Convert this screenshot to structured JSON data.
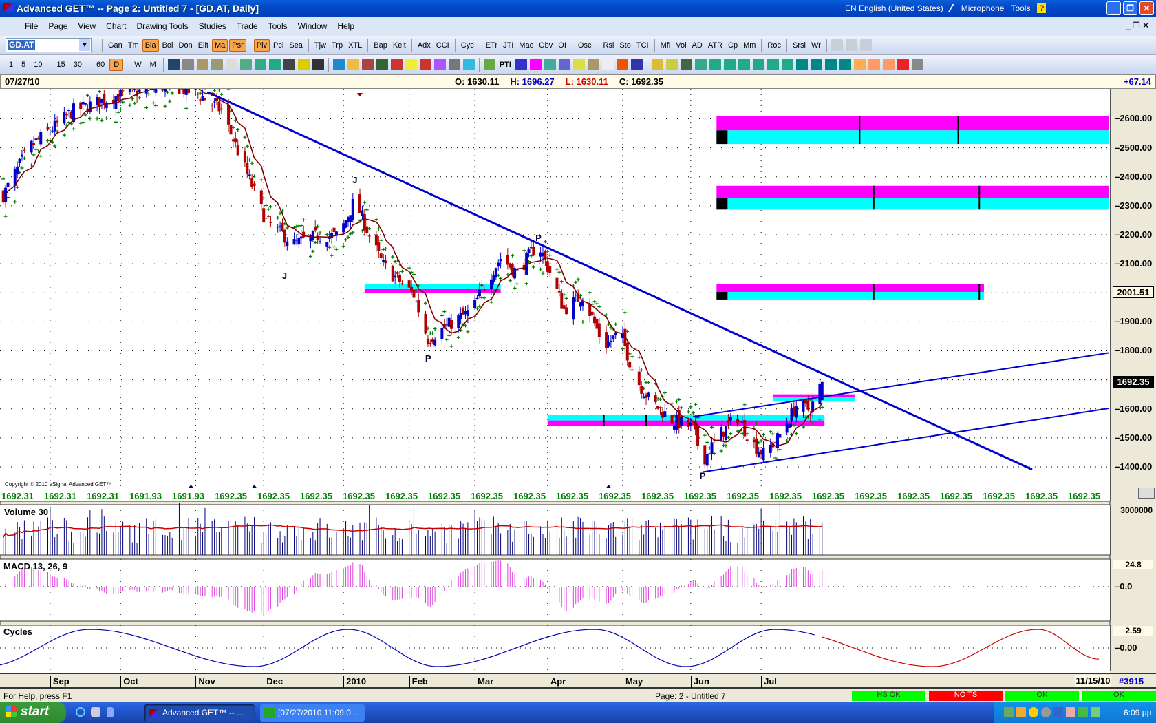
{
  "window": {
    "title": "Advanced GET™  --  Page 2: Untitled 7 - [GD.AT, Daily]",
    "language": "EN English (United States)",
    "microphone": "Microphone",
    "tools": "Tools",
    "help": "?"
  },
  "menu": [
    "File",
    "Page",
    "View",
    "Chart",
    "Drawing Tools",
    "Studies",
    "Trade",
    "Tools",
    "Window",
    "Help"
  ],
  "symbol": "GD.AT",
  "toolbar_studies": {
    "groups": [
      [
        "Gan",
        "Tm",
        "Bia",
        "Bol",
        "Don",
        "Ellt",
        "Ma",
        "Psr"
      ],
      [
        "Piv",
        "Pcl",
        "Sea"
      ],
      [
        "Tjw",
        "Trp",
        "XTL"
      ],
      [
        "Bap",
        "Kelt"
      ],
      [
        "Adx",
        "CCI"
      ],
      [
        "Cyc"
      ],
      [
        "ETr",
        "JTI",
        "Mac",
        "Obv",
        "OI"
      ],
      [
        "Osc"
      ],
      [
        "Rsi",
        "Sto",
        "TCI"
      ],
      [
        "Mfi",
        "Vol",
        "AD",
        "ATR",
        "Cp",
        "Mm"
      ],
      [
        "Roc"
      ],
      [
        "Srsi",
        "Wr"
      ]
    ],
    "active": [
      "Bia",
      "Ma",
      "Psr",
      "Piv"
    ]
  },
  "toolbar_intervals": {
    "groups": [
      [
        "1",
        "5",
        "10"
      ],
      [
        "15",
        "30"
      ],
      [
        "60",
        "D"
      ],
      [
        "W",
        "M"
      ]
    ],
    "active": [
      "D"
    ]
  },
  "toolbar_icons": [
    "new-chart-icon",
    "print-preview-icon",
    "folder-icon",
    "paint-icon",
    "copy-icon",
    "paste-icon",
    "open-icon",
    "save-icon",
    "printer-icon",
    "help-icon",
    "context-help-icon",
    "crosshair-icon",
    "pencil-icon",
    "lines-icon",
    "bars-icon",
    "channel-icon",
    "clock-icon",
    "target-icon",
    "fan-icon",
    "grid-icon",
    "ellipse-icon",
    "wave-icon",
    "pti-icon",
    "table-icon",
    "mob-icon",
    "refresh-icon",
    "zoom-icon",
    "marker-icon",
    "layout-icon",
    "copy2-icon",
    "magnet-icon",
    "compress-icon",
    "open-file-icon",
    "robot-icon",
    "zero-icon",
    "page-icon",
    "arrow-up-icon",
    "arrow-down-icon",
    "arrow-left-icon",
    "arrow-right-icon",
    "step-up-icon",
    "step-down-icon",
    "expand-h-icon",
    "compress-h-icon",
    "expand-v-icon",
    "compress-v-icon",
    "grid-fill-icon",
    "lines-tool-icon",
    "fib-icon",
    "cross-icon",
    "properties-icon"
  ],
  "toolbar_pti_label": "PTI",
  "info": {
    "date": "07/27/10",
    "open": "O: 1630.11",
    "high": "H: 1696.27",
    "low": "L: 1630.11",
    "close": "C: 1692.35",
    "change": "+67.14"
  },
  "colors": {
    "up": "#0000c8",
    "down": "#b00000",
    "ma": "#800000",
    "sar": "#008000",
    "trend": "#0000cc",
    "zone_magenta": "#ff00ff",
    "zone_cyan": "#00ffff",
    "label_green": "#008000",
    "status_ok": "#00ff00",
    "status_bad": "#ff0000"
  },
  "chart_data": {
    "type": "candlestick",
    "symbol": "GD.AT",
    "interval": "Daily",
    "price_ticks": [
      "2600.00",
      "2500.00",
      "2400.00",
      "2300.00",
      "2200.00",
      "2100.00",
      "1900.00",
      "1800.00",
      "1600.00",
      "1500.00",
      "1400.00"
    ],
    "ylim": [
      1270,
      2760
    ],
    "last_price": "1692.35",
    "marked_price": "2001.51",
    "close_path": [
      [
        "2009-08-12",
        2336
      ],
      [
        "2009-08-23",
        2500
      ],
      [
        "2009-09-11",
        2628
      ],
      [
        "2009-09-30",
        2680
      ],
      [
        "2009-10-22",
        2717
      ],
      [
        "2009-11-04",
        2680
      ],
      [
        "2009-11-13",
        2628
      ],
      [
        "2009-11-22",
        2450
      ],
      [
        "2009-12-02",
        2247
      ],
      [
        "2009-12-14",
        2170
      ],
      [
        "2009-12-24",
        2196
      ],
      [
        "2010-01-02",
        2196
      ],
      [
        "2010-01-09",
        2323
      ],
      [
        "2010-01-15",
        2196
      ],
      [
        "2010-01-21",
        2094
      ],
      [
        "2010-02-03",
        1992
      ],
      [
        "2010-02-09",
        1840
      ],
      [
        "2010-02-18",
        1890
      ],
      [
        "2010-02-28",
        1942
      ],
      [
        "2010-03-06",
        2043
      ],
      [
        "2010-03-12",
        2120
      ],
      [
        "2010-03-19",
        2070
      ],
      [
        "2010-03-28",
        2170
      ],
      [
        "2010-04-02",
        2069
      ],
      [
        "2010-04-08",
        1942
      ],
      [
        "2010-04-16",
        1992
      ],
      [
        "2010-04-25",
        1814
      ],
      [
        "2010-05-02",
        1865
      ],
      [
        "2010-05-08",
        1713
      ],
      [
        "2010-05-14",
        1636
      ],
      [
        "2010-05-24",
        1560
      ],
      [
        "2010-06-02",
        1535
      ],
      [
        "2010-06-06",
        1420
      ],
      [
        "2010-06-13",
        1509
      ],
      [
        "2010-06-21",
        1573
      ],
      [
        "2010-06-27",
        1484
      ],
      [
        "2010-07-02",
        1445
      ],
      [
        "2010-07-08",
        1497
      ],
      [
        "2010-07-16",
        1611
      ],
      [
        "2010-07-22",
        1598
      ],
      [
        "2010-07-27",
        1692
      ]
    ],
    "trendlines": [
      {
        "from": [
          "2009-11-07",
          2692
        ],
        "to": [
          "2010-03-28",
          2170
        ],
        "extend": true,
        "width": 3
      },
      {
        "from": [
          "2010-06-02",
          1573
        ],
        "to": [
          "2010-11-27",
          1794
        ],
        "width": 2
      },
      {
        "from": [
          "2010-06-06",
          1382
        ],
        "to": [
          "2010-11-27",
          1603
        ],
        "width": 2
      }
    ],
    "zones": [
      {
        "start": "2010-06-12",
        "end": "2010-11-27",
        "magenta": [
          2560,
          2610
        ],
        "cyan": [
          2513,
          2560
        ],
        "ticks": [
          "2010-08-12",
          "2010-09-23"
        ]
      },
      {
        "start": "2010-06-12",
        "end": "2010-11-27",
        "magenta": [
          2328,
          2369
        ],
        "cyan": [
          2287,
          2328
        ],
        "ticks": [
          "2010-08-18",
          "2010-10-02"
        ]
      },
      {
        "start": "2010-06-12",
        "end": "2010-10-04",
        "magenta": [
          2003,
          2030
        ],
        "cyan": [
          1977,
          2003
        ],
        "ticks": [
          "2010-08-18",
          "2010-10-02"
        ]
      },
      {
        "start": "2010-01-13",
        "end": "2010-03-12",
        "magenta": [
          2000,
          2015
        ],
        "cyan": [
          2015,
          2030
        ],
        "ticks": []
      },
      {
        "start": "2010-04-01",
        "end": "2010-07-28",
        "magenta": [
          1540,
          1560
        ],
        "cyan": [
          1560,
          1580
        ],
        "ticks": [
          "2010-04-25",
          "2010-05-13",
          "2010-06-21"
        ]
      },
      {
        "start": "2010-07-06",
        "end": "2010-08-10",
        "magenta": [
          1640,
          1650
        ],
        "cyan": [
          1625,
          1640
        ],
        "ticks": []
      }
    ],
    "wave_labels": [
      {
        "label": "J",
        "date": "2009-12-10",
        "price": 2060,
        "pos": "below"
      },
      {
        "label": "J",
        "date": "2010-01-09",
        "price": 2390,
        "pos": "above"
      },
      {
        "label": "P",
        "date": "2010-02-09",
        "price": 1775,
        "pos": "below"
      },
      {
        "label": "P",
        "date": "2010-03-28",
        "price": 2190,
        "pos": "above"
      },
      {
        "label": "P",
        "date": "2010-06-06",
        "price": 1370,
        "pos": "below"
      }
    ],
    "top_markers": [
      "2009-08-09",
      "2009-11-09",
      "2010-01-11"
    ],
    "bottom_markers": [
      "2009-10-31",
      "2009-11-27",
      "2010-04-27"
    ],
    "projection_labels": [
      "1692.31",
      "1692.31",
      "1692.31",
      "1691.93",
      "1691.93",
      "1692.35",
      "1692.35",
      "1692.35",
      "1692.35",
      "1692.35",
      "1692.35",
      "1692.35",
      "1692.35",
      "1692.35",
      "1692.35",
      "1692.35",
      "1692.35",
      "1692.35",
      "1692.35",
      "1692.35",
      "1692.35",
      "1692.35",
      "1692.35",
      "1692.35",
      "1692.35",
      "1692.35"
    ],
    "volume": {
      "title": "Volume 30",
      "axis_top": "3000000"
    },
    "macd": {
      "title": "MACD 13, 26, 9",
      "axis_top": "24.8",
      "zero": "0.0"
    },
    "cycles": {
      "title": "Cycles",
      "axis_top": "2.59",
      "zero": "0.00",
      "extrema": [
        [
          "2009-08-05",
          -1
        ],
        [
          "2009-09-18",
          1
        ],
        [
          "2009-11-27",
          -1
        ],
        [
          "2010-01-06",
          1
        ],
        [
          "2010-02-13",
          -1
        ],
        [
          "2010-04-21",
          1
        ],
        [
          "2010-05-30",
          -1
        ],
        [
          "2010-07-07",
          1
        ],
        [
          "2010-09-12",
          -1
        ],
        [
          "2010-10-27",
          1
        ],
        [
          "2010-11-22",
          -0.6
        ]
      ],
      "projection_start": "2010-07-27"
    },
    "months": [
      "Sep",
      "Oct",
      "Nov",
      "Dec",
      "2010",
      "Feb",
      "Mar",
      "Apr",
      "May",
      "Jun",
      "Jul"
    ],
    "end_date": "11/15/10",
    "bar_number": "#3915"
  },
  "copyright": "Copyright © 2010 eSignal Advanced GET™",
  "status": {
    "help": "For Help, press F1",
    "page": "Page: 2 - Untitled 7",
    "hs": "HS OK",
    "ts": "NO TS",
    "ok1": "OK",
    "ok2": "OK"
  },
  "taskbar": {
    "start": "start",
    "task1": "Advanced GET™  --  ...",
    "task2": "[07/27/2010 11:09:0...",
    "clock": "6:09 μμ"
  }
}
